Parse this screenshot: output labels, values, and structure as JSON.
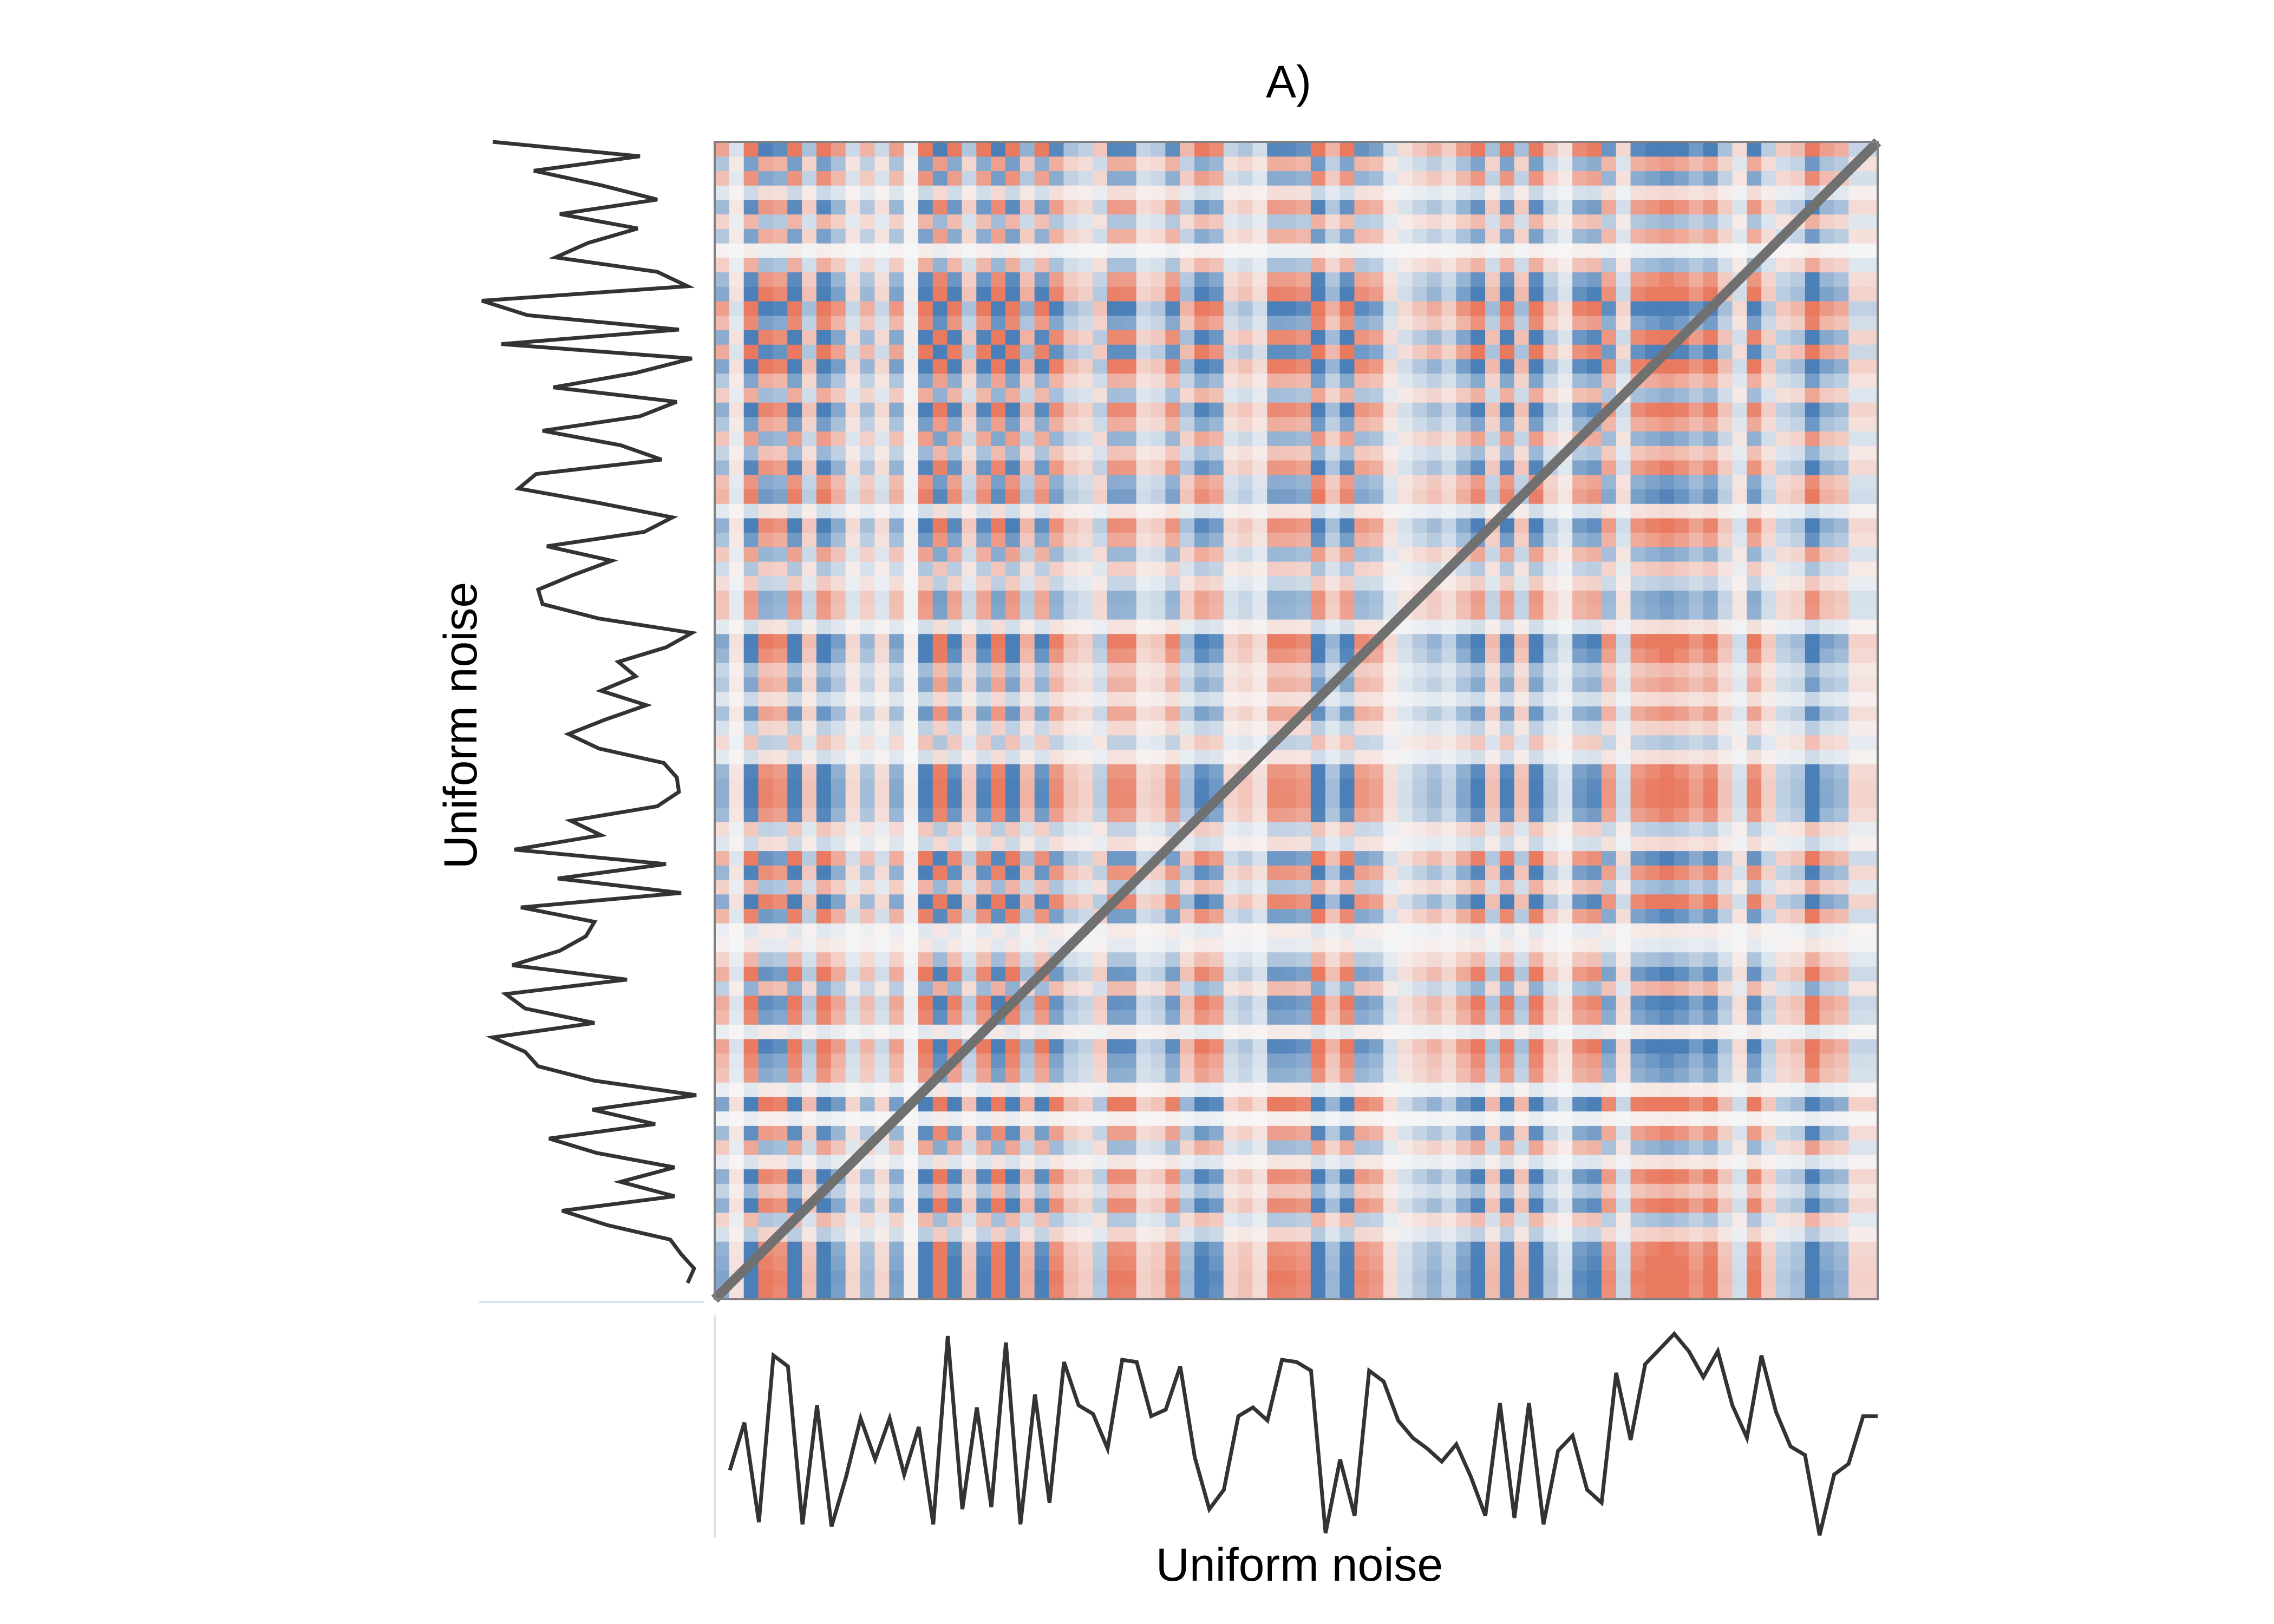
{
  "chart_data": {
    "type": "heatmap",
    "title": "A)",
    "xlabel": "Uniform noise",
    "ylabel": "Uniform noise",
    "n": 80,
    "description_of_cells": "recurrence-style product of centered series (red positive, blue negative)",
    "series_x": {
      "name": "Uniform noise",
      "values": [
        0.31,
        0.53,
        0.07,
        0.84,
        0.79,
        0.06,
        0.61,
        0.05,
        0.28,
        0.55,
        0.36,
        0.55,
        0.29,
        0.51,
        0.06,
        0.93,
        0.13,
        0.6,
        0.14,
        0.9,
        0.06,
        0.66,
        0.16,
        0.81,
        0.61,
        0.57,
        0.41,
        0.82,
        0.81,
        0.56,
        0.59,
        0.79,
        0.37,
        0.13,
        0.22,
        0.56,
        0.6,
        0.54,
        0.82,
        0.81,
        0.77,
        0.02,
        0.36,
        0.1,
        0.77,
        0.72,
        0.54,
        0.46,
        0.41,
        0.35,
        0.43,
        0.28,
        0.1,
        0.62,
        0.09,
        0.62,
        0.06,
        0.4,
        0.47,
        0.22,
        0.16,
        0.76,
        0.45,
        0.8,
        0.87,
        0.94,
        0.86,
        0.74,
        0.86,
        0.61,
        0.46,
        0.84,
        0.58,
        0.42,
        0.38,
        0.01,
        0.29,
        0.34,
        0.56,
        0.56
      ]
    },
    "series_y": {
      "name": "Uniform noise",
      "values": [
        0.95,
        0.98,
        0.92,
        0.87,
        0.58,
        0.37,
        0.89,
        0.64,
        0.89,
        0.53,
        0.31,
        0.8,
        0.51,
        0.99,
        0.52,
        0.26,
        0.2,
        0.05,
        0.52,
        0.2,
        0.11,
        0.67,
        0.14,
        0.36,
        0.48,
        0.52,
        0.18,
        0.92,
        0.35,
        0.85,
        0.15,
        0.55,
        0.41,
        0.81,
        0.91,
        0.9,
        0.84,
        0.54,
        0.4,
        0.57,
        0.76,
        0.55,
        0.71,
        0.63,
        0.85,
        0.97,
        0.54,
        0.28,
        0.26,
        0.42,
        0.6,
        0.3,
        0.75,
        0.88,
        0.54,
        0.17,
        0.25,
        0.83,
        0.64,
        0.28,
        0.73,
        0.9,
        0.33,
        0.71,
        0.97,
        0.09,
        0.91,
        0.21,
        0.0,
        0.95,
        0.81,
        0.34,
        0.49,
        0.72,
        0.36,
        0.81,
        0.55,
        0.24,
        0.73,
        0.05
      ]
    },
    "colors": {
      "positive": "#e9795f",
      "negative": "#4a7fb8",
      "neutral": "#f7f7f7",
      "diagonal": "#707070",
      "frame": "#808080",
      "series_line": "#333333"
    }
  }
}
